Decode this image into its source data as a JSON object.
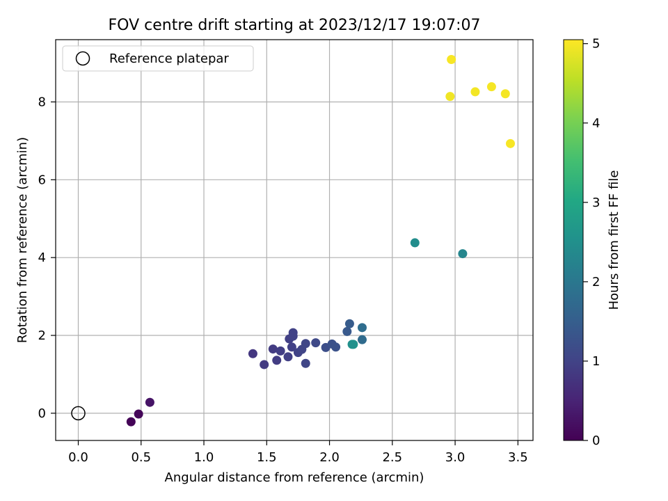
{
  "chart_data": {
    "type": "scatter",
    "title": "FOV centre drift starting at 2023/12/17 19:07:07",
    "xlabel": "Angular distance from reference (arcmin)",
    "ylabel": "Rotation from reference (arcmin)",
    "xlim": [
      -0.18,
      3.62
    ],
    "ylim": [
      -0.7,
      9.6
    ],
    "xticks": [
      0.0,
      0.5,
      1.0,
      1.5,
      2.0,
      2.5,
      3.0,
      3.5
    ],
    "xtick_labels": [
      "0.0",
      "0.5",
      "1.0",
      "1.5",
      "2.0",
      "2.5",
      "3.0",
      "3.5"
    ],
    "yticks": [
      0,
      2,
      4,
      6,
      8
    ],
    "ytick_labels": [
      "0",
      "2",
      "4",
      "6",
      "8"
    ],
    "grid": true,
    "legend": {
      "position": "top-left",
      "entries": [
        "Reference platepar"
      ]
    },
    "reference": {
      "name": "Reference platepar",
      "x": 0.0,
      "y": 0.0
    },
    "colorbar": {
      "label": "Hours from first FF file",
      "colormap": "viridis",
      "range": [
        0,
        5.05
      ],
      "ticks": [
        0,
        1,
        2,
        3,
        4,
        5
      ],
      "tick_labels": [
        "0",
        "1",
        "2",
        "3",
        "4",
        "5"
      ]
    },
    "points": [
      {
        "x": 0.42,
        "y": -0.22,
        "c": 0.05
      },
      {
        "x": 0.48,
        "y": -0.02,
        "c": 0.08
      },
      {
        "x": 0.57,
        "y": 0.28,
        "c": 0.28
      },
      {
        "x": 1.39,
        "y": 1.53,
        "c": 0.8
      },
      {
        "x": 1.48,
        "y": 1.25,
        "c": 0.85
      },
      {
        "x": 1.55,
        "y": 1.65,
        "c": 0.88
      },
      {
        "x": 1.58,
        "y": 1.36,
        "c": 0.9
      },
      {
        "x": 1.61,
        "y": 1.6,
        "c": 0.92
      },
      {
        "x": 1.67,
        "y": 1.45,
        "c": 0.95
      },
      {
        "x": 1.68,
        "y": 1.91,
        "c": 0.95
      },
      {
        "x": 1.7,
        "y": 1.7,
        "c": 0.97
      },
      {
        "x": 1.71,
        "y": 2.07,
        "c": 0.98
      },
      {
        "x": 1.71,
        "y": 1.98,
        "c": 0.98
      },
      {
        "x": 1.75,
        "y": 1.56,
        "c": 1.0
      },
      {
        "x": 1.78,
        "y": 1.64,
        "c": 1.02
      },
      {
        "x": 1.81,
        "y": 1.79,
        "c": 1.05
      },
      {
        "x": 1.81,
        "y": 1.28,
        "c": 1.05
      },
      {
        "x": 1.89,
        "y": 1.81,
        "c": 1.1
      },
      {
        "x": 1.97,
        "y": 1.69,
        "c": 1.2
      },
      {
        "x": 2.02,
        "y": 1.78,
        "c": 1.25
      },
      {
        "x": 2.05,
        "y": 1.7,
        "c": 1.28
      },
      {
        "x": 2.14,
        "y": 2.1,
        "c": 1.4
      },
      {
        "x": 2.16,
        "y": 2.3,
        "c": 1.45
      },
      {
        "x": 2.19,
        "y": 1.77,
        "c": 2.6
      },
      {
        "x": 2.18,
        "y": 1.77,
        "c": 2.5
      },
      {
        "x": 2.26,
        "y": 1.89,
        "c": 1.75
      },
      {
        "x": 2.26,
        "y": 2.2,
        "c": 1.8
      },
      {
        "x": 2.68,
        "y": 4.38,
        "c": 2.45
      },
      {
        "x": 3.06,
        "y": 4.1,
        "c": 2.3
      },
      {
        "x": 2.96,
        "y": 8.14,
        "c": 4.95
      },
      {
        "x": 2.97,
        "y": 9.09,
        "c": 5.0
      },
      {
        "x": 3.16,
        "y": 8.26,
        "c": 4.97
      },
      {
        "x": 3.29,
        "y": 8.39,
        "c": 4.99
      },
      {
        "x": 3.4,
        "y": 8.21,
        "c": 4.98
      },
      {
        "x": 3.44,
        "y": 6.93,
        "c": 5.0
      }
    ]
  }
}
